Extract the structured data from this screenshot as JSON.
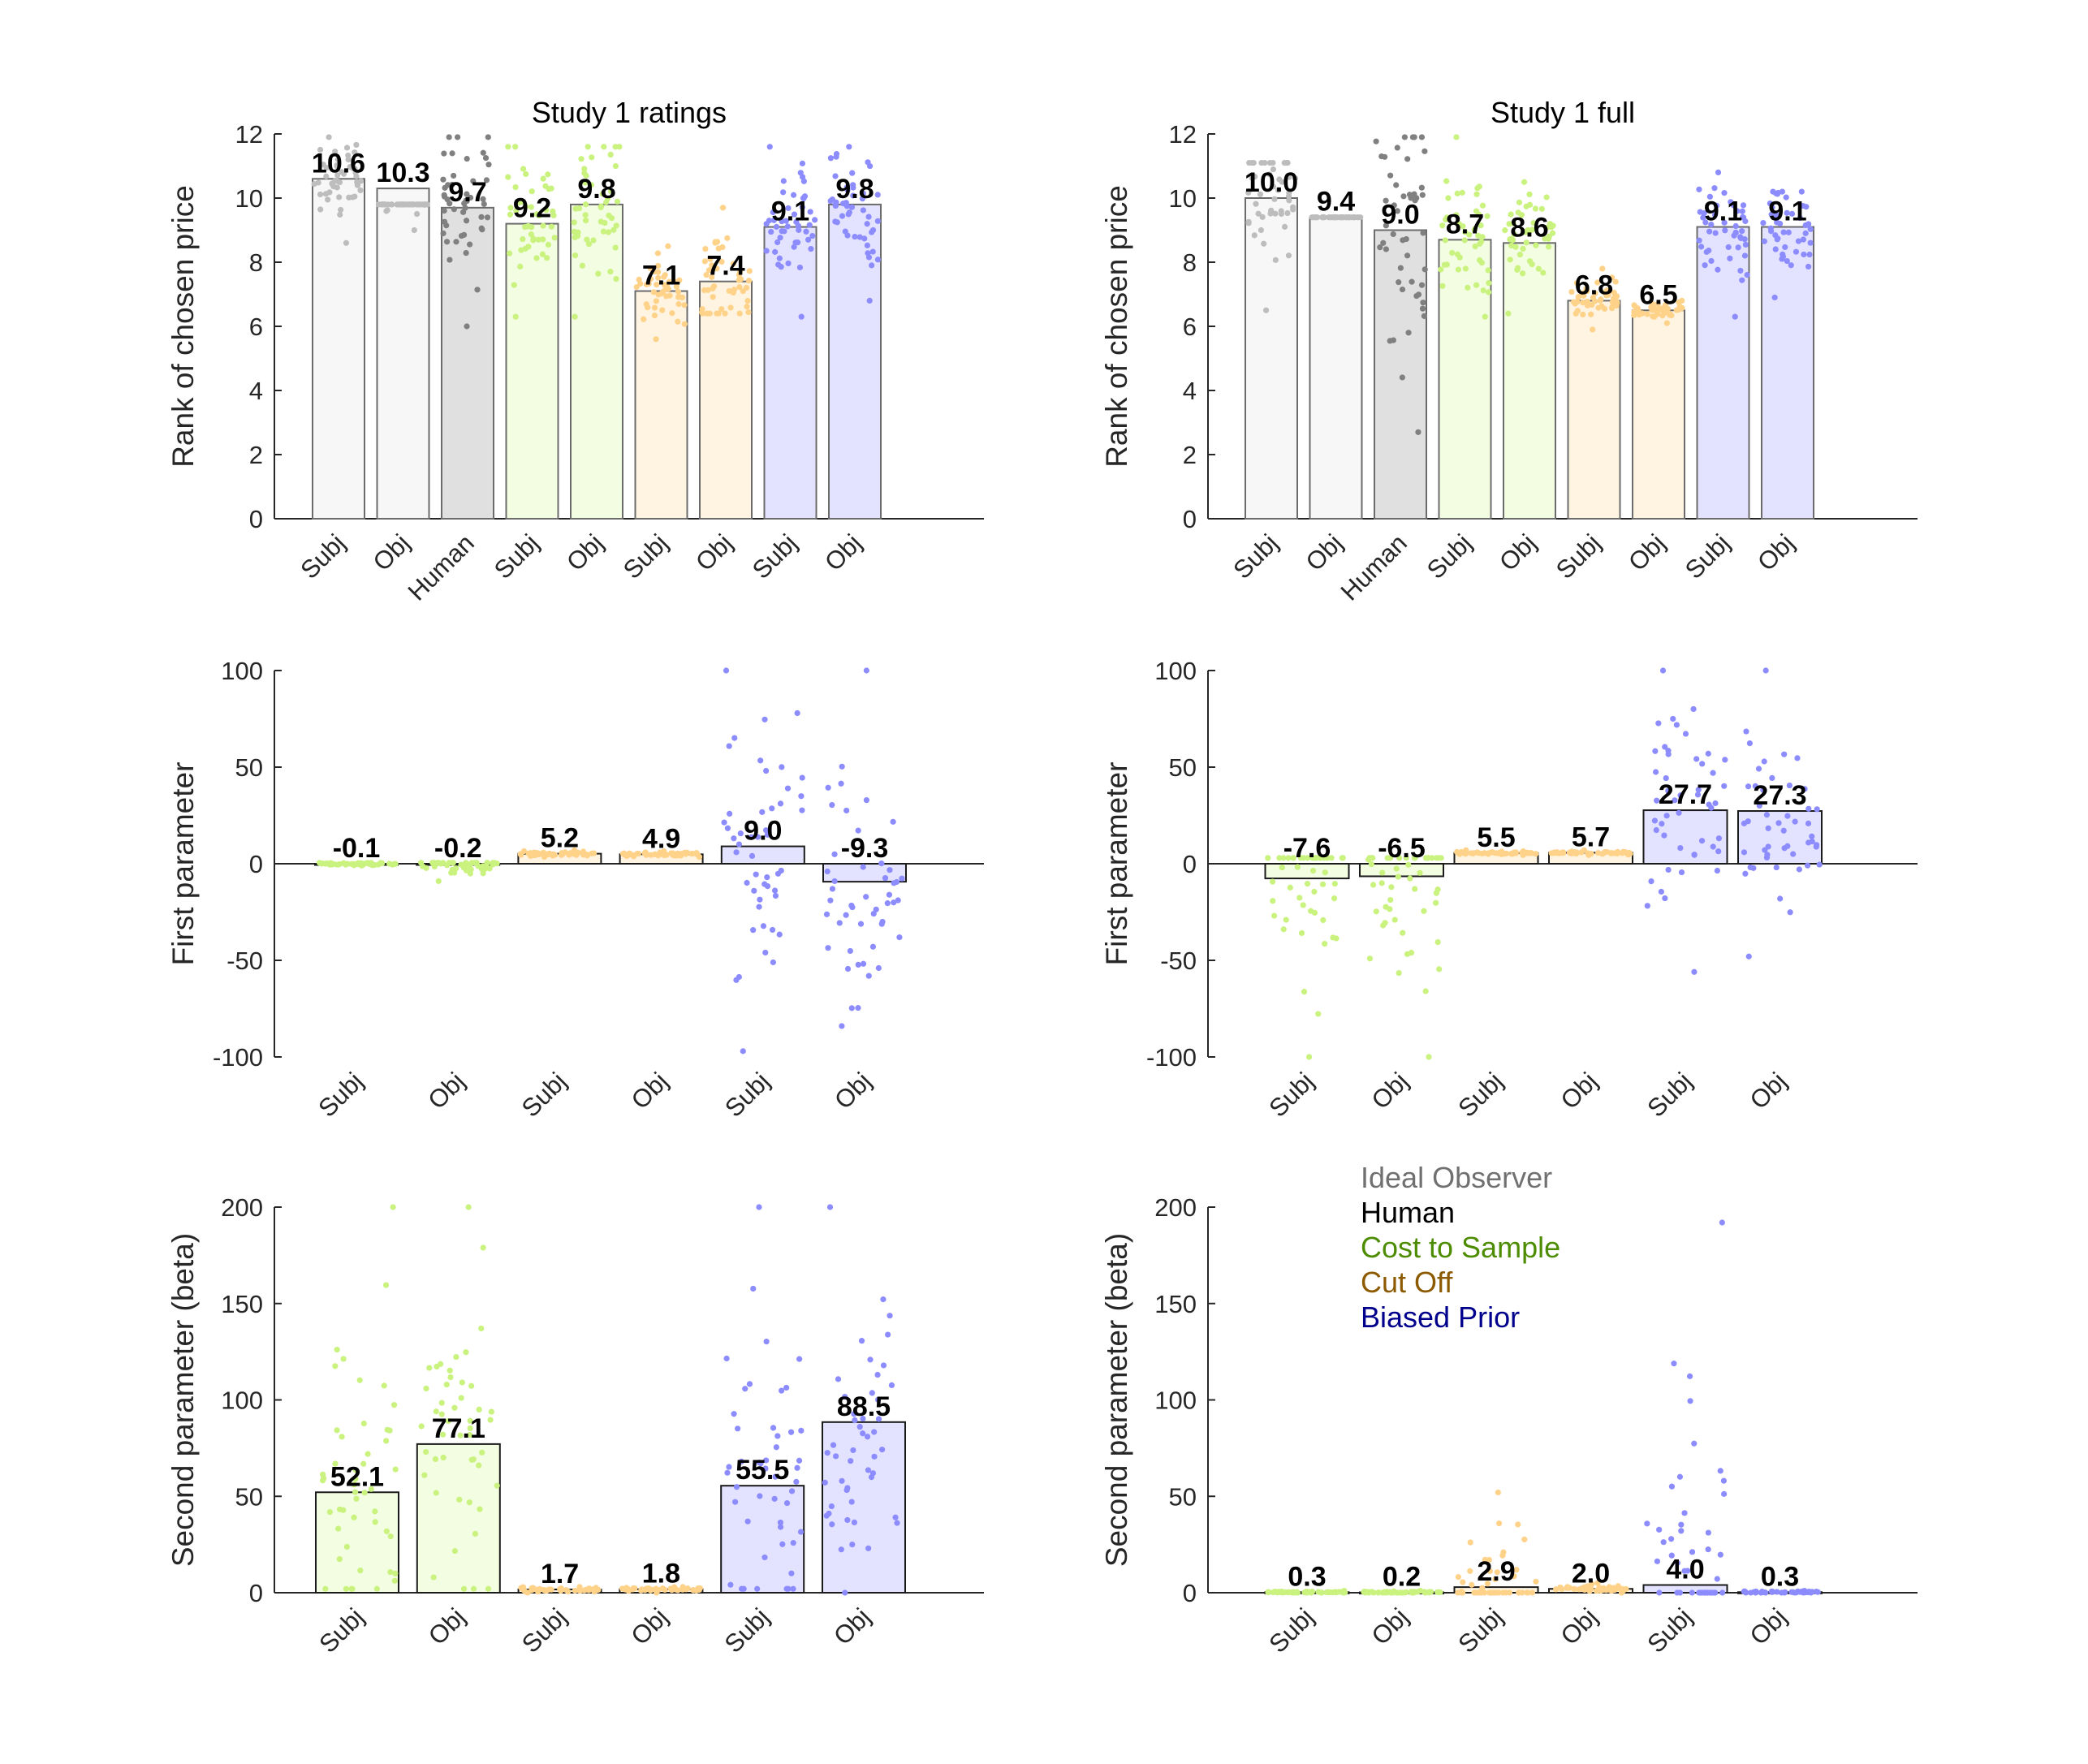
{
  "colors": {
    "ideal": {
      "dot": "#bdbdbd",
      "fill": "#f7f7f7"
    },
    "human": {
      "dot": "#808080",
      "fill": "#e0e0e0"
    },
    "cost": {
      "dot": "#c9f27e",
      "fill": "#f3fde2"
    },
    "cutoff": {
      "dot": "#ffd28a",
      "fill": "#fff4e2"
    },
    "prior": {
      "dot": "#8c8cff",
      "fill": "#e3e3ff"
    },
    "legend_text": [
      "#707070",
      "#000000",
      "#4d8c00",
      "#8c5a00",
      "#00008c"
    ]
  },
  "legend": {
    "items": [
      "Ideal Observer",
      "Human",
      "Cost to Sample",
      "Cut Off",
      "Biased Prior"
    ],
    "placement": "top-left of lower-right panel"
  },
  "chart_data": [
    {
      "panel": "rank-ratings",
      "type": "bar",
      "title": "Study 1 ratings",
      "ylabel": "Rank of chosen price",
      "ylim": [
        0,
        12
      ],
      "yticks": [
        0,
        2,
        4,
        6,
        8,
        10,
        12
      ],
      "categories": [
        "Subj",
        "Obj",
        "Human",
        "Subj",
        "Obj",
        "Subj",
        "Obj",
        "Subj",
        "Obj"
      ],
      "groups": [
        "ideal",
        "ideal",
        "human",
        "cost",
        "cost",
        "cutoff",
        "cutoff",
        "prior",
        "prior"
      ],
      "values": [
        10.6,
        10.3,
        9.7,
        9.2,
        9.8,
        7.1,
        7.4,
        9.1,
        9.8
      ],
      "labels": [
        "10.6",
        "10.3",
        "9.7",
        "9.2",
        "9.8",
        "7.1",
        "7.4",
        "9.1",
        "9.8"
      ],
      "spread": [
        [
          8.6,
          11.9
        ],
        [
          9.0,
          9.8
        ],
        [
          6.0,
          11.9
        ],
        [
          6.3,
          11.6
        ],
        [
          6.3,
          11.6
        ],
        [
          5.6,
          8.5
        ],
        [
          6.4,
          9.7
        ],
        [
          6.3,
          11.6
        ],
        [
          6.8,
          11.6
        ]
      ]
    },
    {
      "panel": "rank-full",
      "type": "bar",
      "title": "Study 1 full",
      "ylabel": "Rank of chosen price",
      "ylim": [
        0,
        12
      ],
      "yticks": [
        0,
        2,
        4,
        6,
        8,
        10,
        12
      ],
      "categories": [
        "Subj",
        "Obj",
        "Human",
        "Subj",
        "Obj",
        "Subj",
        "Obj",
        "Subj",
        "Obj"
      ],
      "groups": [
        "ideal",
        "ideal",
        "human",
        "cost",
        "cost",
        "cutoff",
        "cutoff",
        "prior",
        "prior"
      ],
      "values": [
        10.0,
        9.4,
        9.0,
        8.7,
        8.6,
        6.8,
        6.5,
        9.1,
        9.1
      ],
      "labels": [
        "10.0",
        "9.4",
        "9.0",
        "8.7",
        "8.6",
        "6.8",
        "6.5",
        "9.1",
        "9.1"
      ],
      "spread": [
        [
          6.5,
          11.1
        ],
        [
          9.4,
          9.4
        ],
        [
          2.7,
          11.9
        ],
        [
          6.3,
          11.9
        ],
        [
          6.4,
          10.5
        ],
        [
          5.9,
          7.8
        ],
        [
          6.1,
          6.8
        ],
        [
          6.3,
          10.8
        ],
        [
          6.9,
          10.2
        ]
      ]
    },
    {
      "panel": "first-param-ratings",
      "type": "bar",
      "title": "",
      "ylabel": "First parameter",
      "ylim": [
        -100,
        100
      ],
      "yticks": [
        -100,
        -50,
        0,
        50,
        100
      ],
      "categories": [
        "Subj",
        "Obj",
        "Subj",
        "Obj",
        "Subj",
        "Obj"
      ],
      "groups": [
        "cost",
        "cost",
        "cutoff",
        "cutoff",
        "prior",
        "prior"
      ],
      "values": [
        -0.1,
        -0.2,
        5.2,
        4.9,
        9.0,
        -9.3
      ],
      "labels": [
        "-0.1",
        "-0.2",
        "5.2",
        "4.9",
        "9.0",
        "-9.3"
      ],
      "spread": [
        [
          -1,
          0.5
        ],
        [
          -9,
          0.5
        ],
        [
          3.5,
          7
        ],
        [
          3.5,
          6.5
        ],
        [
          -97,
          100
        ],
        [
          -84,
          100
        ]
      ]
    },
    {
      "panel": "first-param-full",
      "type": "bar",
      "title": "",
      "ylabel": "First parameter",
      "ylim": [
        -100,
        100
      ],
      "yticks": [
        -100,
        -50,
        0,
        50,
        100
      ],
      "categories": [
        "Subj",
        "Obj",
        "Subj",
        "Obj",
        "Subj",
        "Obj"
      ],
      "groups": [
        "cost",
        "cost",
        "cutoff",
        "cutoff",
        "prior",
        "prior"
      ],
      "values": [
        -7.6,
        -6.5,
        5.5,
        5.7,
        27.7,
        27.3
      ],
      "labels": [
        "-7.6",
        "-6.5",
        "5.5",
        "5.7",
        "27.7",
        "27.3"
      ],
      "spread": [
        [
          -100,
          3
        ],
        [
          -100,
          3
        ],
        [
          4.5,
          7
        ],
        [
          4.5,
          7
        ],
        [
          -56,
          100
        ],
        [
          -48,
          100
        ]
      ]
    },
    {
      "panel": "second-param-ratings",
      "type": "bar",
      "title": "",
      "ylabel": "Second parameter (beta)",
      "ylim": [
        0,
        200
      ],
      "yticks": [
        0,
        50,
        100,
        150,
        200
      ],
      "categories": [
        "Subj",
        "Obj",
        "Subj",
        "Obj",
        "Subj",
        "Obj"
      ],
      "groups": [
        "cost",
        "cost",
        "cutoff",
        "cutoff",
        "prior",
        "prior"
      ],
      "values": [
        52.1,
        77.1,
        1.7,
        1.8,
        55.5,
        88.5
      ],
      "labels": [
        "52.1",
        "77.1",
        "1.7",
        "1.8",
        "55.5",
        "88.5"
      ],
      "spread": [
        [
          2,
          200
        ],
        [
          2,
          200
        ],
        [
          0,
          3
        ],
        [
          0,
          3
        ],
        [
          2,
          200
        ],
        [
          0,
          200
        ]
      ]
    },
    {
      "panel": "second-param-full",
      "type": "bar",
      "title": "",
      "ylabel": "Second parameter (beta)",
      "ylim": [
        0,
        200
      ],
      "yticks": [
        0,
        50,
        100,
        150,
        200
      ],
      "categories": [
        "Subj",
        "Obj",
        "Subj",
        "Obj",
        "Subj",
        "Obj"
      ],
      "groups": [
        "cost",
        "cost",
        "cutoff",
        "cutoff",
        "prior",
        "prior"
      ],
      "values": [
        0.3,
        0.2,
        2.9,
        2.0,
        4.0,
        0.3
      ],
      "labels": [
        "0.3",
        "0.2",
        "2.9",
        "2.0",
        "4.0",
        "0.3"
      ],
      "spread": [
        [
          0,
          1
        ],
        [
          0,
          1
        ],
        [
          0,
          52
        ],
        [
          0,
          5
        ],
        [
          0,
          192
        ],
        [
          0,
          1
        ]
      ]
    }
  ]
}
